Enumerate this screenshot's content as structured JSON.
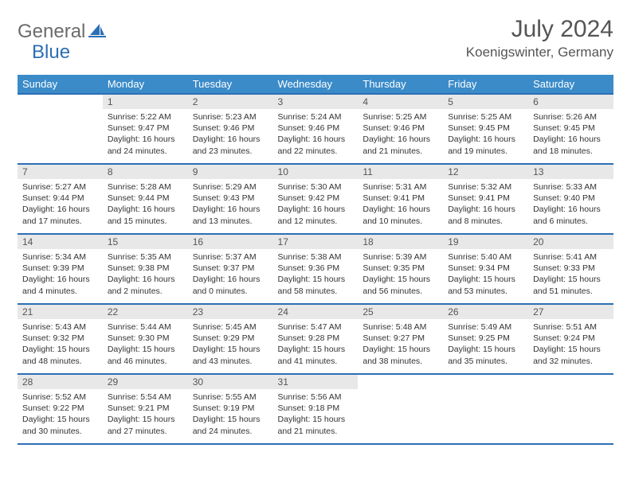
{
  "logo": {
    "general": "General",
    "blue": "Blue"
  },
  "title": "July 2024",
  "location": "Koenigswinter, Germany",
  "colors": {
    "header_bg": "#3b8bc9",
    "border": "#2d6fb5",
    "daynum_bg": "#e8e8e8",
    "text": "#333333",
    "title_text": "#555555"
  },
  "layout": {
    "first_weekday_index": 1,
    "days_in_month": 31
  },
  "weekdays": [
    "Sunday",
    "Monday",
    "Tuesday",
    "Wednesday",
    "Thursday",
    "Friday",
    "Saturday"
  ],
  "days": [
    {
      "n": 1,
      "sunrise": "5:22 AM",
      "sunset": "9:47 PM",
      "daylight": "16 hours and 24 minutes."
    },
    {
      "n": 2,
      "sunrise": "5:23 AM",
      "sunset": "9:46 PM",
      "daylight": "16 hours and 23 minutes."
    },
    {
      "n": 3,
      "sunrise": "5:24 AM",
      "sunset": "9:46 PM",
      "daylight": "16 hours and 22 minutes."
    },
    {
      "n": 4,
      "sunrise": "5:25 AM",
      "sunset": "9:46 PM",
      "daylight": "16 hours and 21 minutes."
    },
    {
      "n": 5,
      "sunrise": "5:25 AM",
      "sunset": "9:45 PM",
      "daylight": "16 hours and 19 minutes."
    },
    {
      "n": 6,
      "sunrise": "5:26 AM",
      "sunset": "9:45 PM",
      "daylight": "16 hours and 18 minutes."
    },
    {
      "n": 7,
      "sunrise": "5:27 AM",
      "sunset": "9:44 PM",
      "daylight": "16 hours and 17 minutes."
    },
    {
      "n": 8,
      "sunrise": "5:28 AM",
      "sunset": "9:44 PM",
      "daylight": "16 hours and 15 minutes."
    },
    {
      "n": 9,
      "sunrise": "5:29 AM",
      "sunset": "9:43 PM",
      "daylight": "16 hours and 13 minutes."
    },
    {
      "n": 10,
      "sunrise": "5:30 AM",
      "sunset": "9:42 PM",
      "daylight": "16 hours and 12 minutes."
    },
    {
      "n": 11,
      "sunrise": "5:31 AM",
      "sunset": "9:41 PM",
      "daylight": "16 hours and 10 minutes."
    },
    {
      "n": 12,
      "sunrise": "5:32 AM",
      "sunset": "9:41 PM",
      "daylight": "16 hours and 8 minutes."
    },
    {
      "n": 13,
      "sunrise": "5:33 AM",
      "sunset": "9:40 PM",
      "daylight": "16 hours and 6 minutes."
    },
    {
      "n": 14,
      "sunrise": "5:34 AM",
      "sunset": "9:39 PM",
      "daylight": "16 hours and 4 minutes."
    },
    {
      "n": 15,
      "sunrise": "5:35 AM",
      "sunset": "9:38 PM",
      "daylight": "16 hours and 2 minutes."
    },
    {
      "n": 16,
      "sunrise": "5:37 AM",
      "sunset": "9:37 PM",
      "daylight": "16 hours and 0 minutes."
    },
    {
      "n": 17,
      "sunrise": "5:38 AM",
      "sunset": "9:36 PM",
      "daylight": "15 hours and 58 minutes."
    },
    {
      "n": 18,
      "sunrise": "5:39 AM",
      "sunset": "9:35 PM",
      "daylight": "15 hours and 56 minutes."
    },
    {
      "n": 19,
      "sunrise": "5:40 AM",
      "sunset": "9:34 PM",
      "daylight": "15 hours and 53 minutes."
    },
    {
      "n": 20,
      "sunrise": "5:41 AM",
      "sunset": "9:33 PM",
      "daylight": "15 hours and 51 minutes."
    },
    {
      "n": 21,
      "sunrise": "5:43 AM",
      "sunset": "9:32 PM",
      "daylight": "15 hours and 48 minutes."
    },
    {
      "n": 22,
      "sunrise": "5:44 AM",
      "sunset": "9:30 PM",
      "daylight": "15 hours and 46 minutes."
    },
    {
      "n": 23,
      "sunrise": "5:45 AM",
      "sunset": "9:29 PM",
      "daylight": "15 hours and 43 minutes."
    },
    {
      "n": 24,
      "sunrise": "5:47 AM",
      "sunset": "9:28 PM",
      "daylight": "15 hours and 41 minutes."
    },
    {
      "n": 25,
      "sunrise": "5:48 AM",
      "sunset": "9:27 PM",
      "daylight": "15 hours and 38 minutes."
    },
    {
      "n": 26,
      "sunrise": "5:49 AM",
      "sunset": "9:25 PM",
      "daylight": "15 hours and 35 minutes."
    },
    {
      "n": 27,
      "sunrise": "5:51 AM",
      "sunset": "9:24 PM",
      "daylight": "15 hours and 32 minutes."
    },
    {
      "n": 28,
      "sunrise": "5:52 AM",
      "sunset": "9:22 PM",
      "daylight": "15 hours and 30 minutes."
    },
    {
      "n": 29,
      "sunrise": "5:54 AM",
      "sunset": "9:21 PM",
      "daylight": "15 hours and 27 minutes."
    },
    {
      "n": 30,
      "sunrise": "5:55 AM",
      "sunset": "9:19 PM",
      "daylight": "15 hours and 24 minutes."
    },
    {
      "n": 31,
      "sunrise": "5:56 AM",
      "sunset": "9:18 PM",
      "daylight": "15 hours and 21 minutes."
    }
  ],
  "labels": {
    "sunrise": "Sunrise:",
    "sunset": "Sunset:",
    "daylight": "Daylight:"
  }
}
